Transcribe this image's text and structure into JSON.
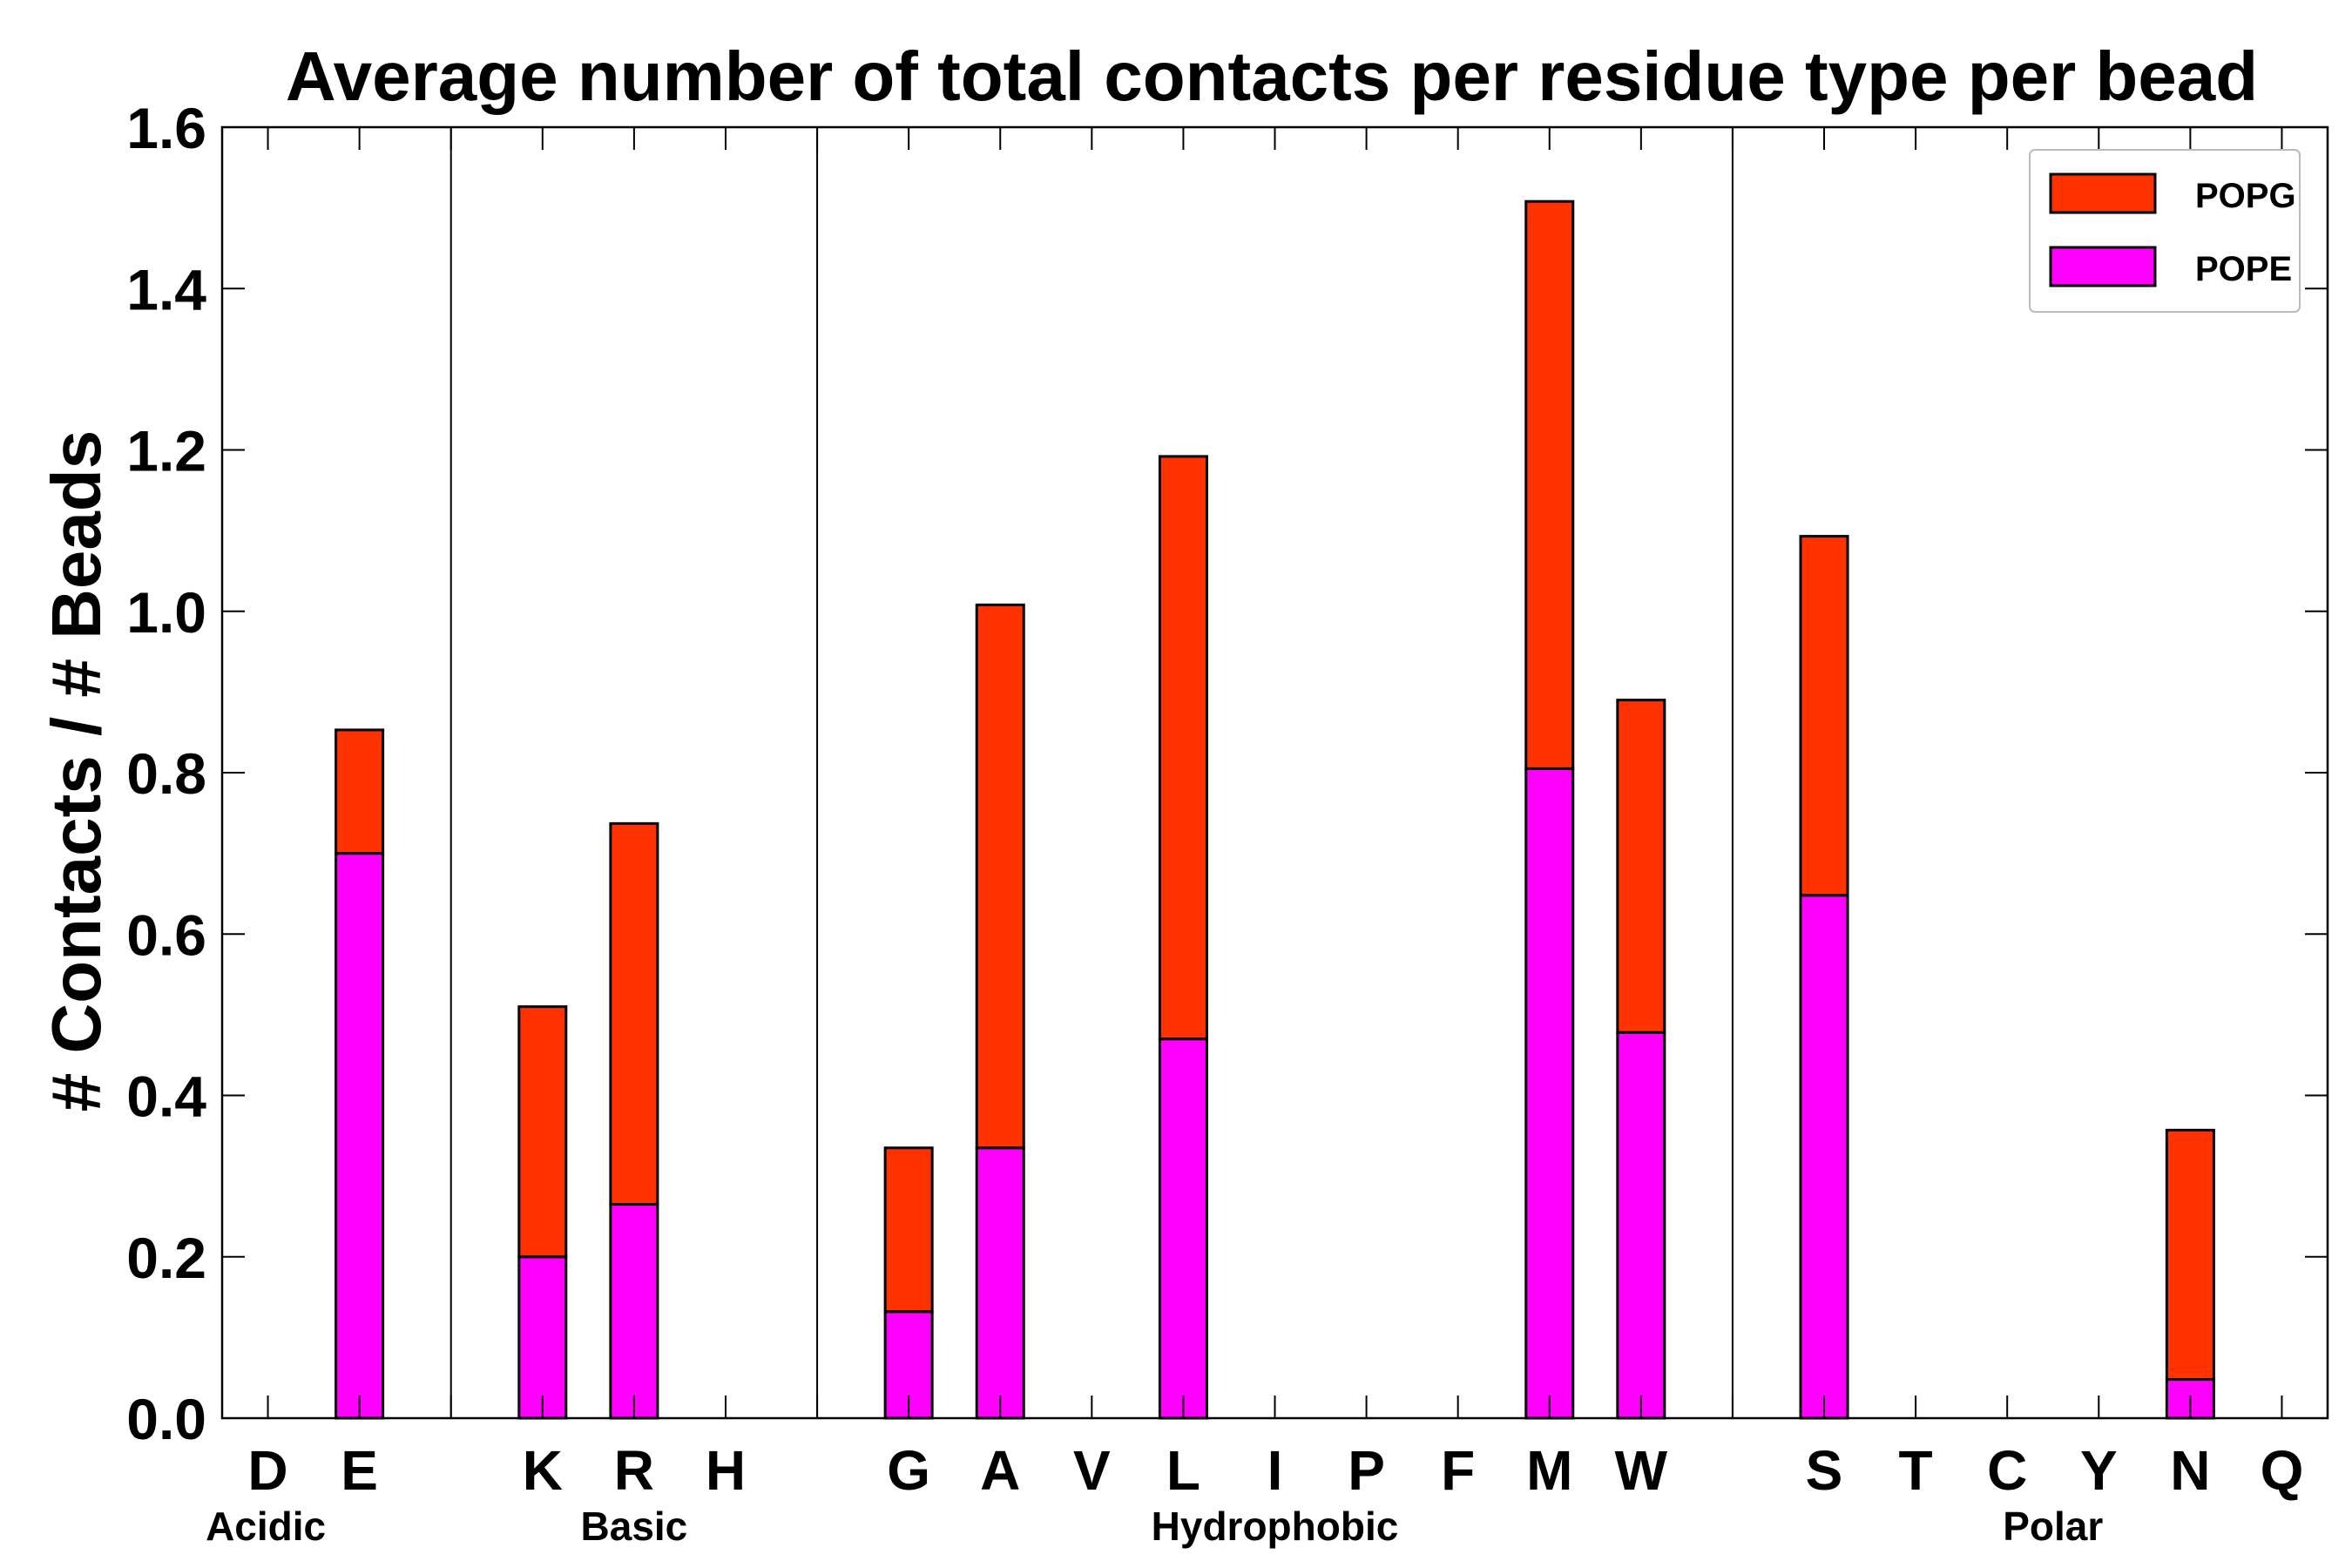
{
  "chart_data": {
    "type": "bar",
    "stacked": true,
    "title": "Average number of total contacts per residue type per bead",
    "xlabel": "",
    "ylabel": "# Contacts / # Beads",
    "ylim": [
      0.0,
      1.6
    ],
    "yticks": [
      "0.0",
      "0.2",
      "0.4",
      "0.6",
      "0.8",
      "1.0",
      "1.2",
      "1.4",
      "1.6"
    ],
    "categories": [
      "D",
      "E",
      "",
      "K",
      "R",
      "H",
      "",
      "G",
      "A",
      "V",
      "L",
      "I",
      "P",
      "F",
      "M",
      "W",
      "",
      "S",
      "T",
      "C",
      "Y",
      "N",
      "Q"
    ],
    "series": [
      {
        "name": "POPE",
        "color": "#ff00ff",
        "values": [
          0,
          0.7,
          0,
          0.2,
          0.265,
          0,
          0,
          0.132,
          0.335,
          0,
          0.47,
          0,
          0,
          0,
          0.805,
          0.478,
          0,
          0.648,
          0,
          0,
          0,
          0.048,
          0
        ]
      },
      {
        "name": "POPG",
        "color": "#ff3300",
        "values": [
          0,
          0.153,
          0,
          0.31,
          0.472,
          0,
          0,
          0.203,
          0.673,
          0,
          0.722,
          0,
          0,
          0,
          0.703,
          0.412,
          0,
          0.445,
          0,
          0,
          0,
          0.309,
          0
        ]
      }
    ],
    "groups": [
      {
        "label": "Acidic"
      },
      {
        "label": "Basic"
      },
      {
        "label": "Hydrophobic"
      },
      {
        "label": "Polar"
      }
    ],
    "legend": {
      "position": "top-right",
      "order": [
        "POPG",
        "POPE"
      ]
    },
    "grid": false
  }
}
